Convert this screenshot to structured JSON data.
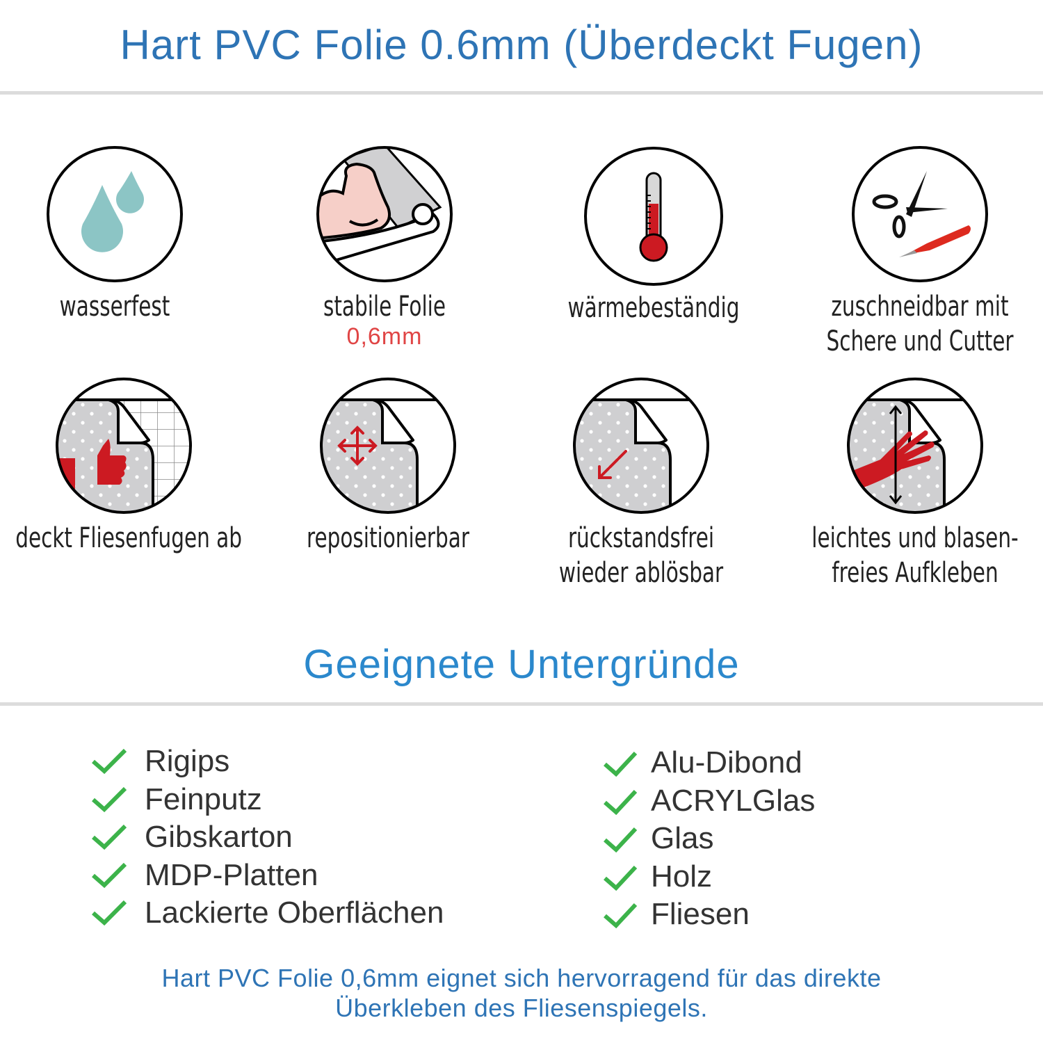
{
  "header": {
    "title": "Hart PVC Folie 0.6mm (Überdeckt Fugen)"
  },
  "features": [
    {
      "icon": "water-drops-icon",
      "lines": [
        "wasserfest"
      ]
    },
    {
      "icon": "strong-arm-roll-icon",
      "lines": [
        "stabile Folie"
      ],
      "highlight": "0,6mm"
    },
    {
      "icon": "thermometer-icon",
      "lines": [
        "wärmebeständig"
      ]
    },
    {
      "icon": "scissors-cutter-icon",
      "lines": [
        "zuschneidbar mit",
        "Schere und Cutter"
      ]
    },
    {
      "icon": "thumbs-up-tiles-icon",
      "lines": [
        "deckt Fliesenfugen ab"
      ]
    },
    {
      "icon": "move-arrows-icon",
      "lines": [
        "repositionierbar"
      ]
    },
    {
      "icon": "peel-arrow-icon",
      "lines": [
        "rückstandsfrei",
        "wieder ablösbar"
      ]
    },
    {
      "icon": "hand-smooth-icon",
      "lines": [
        "leichtes und blasen-",
        "freies Aufkleben"
      ]
    }
  ],
  "surfaces": {
    "title": "Geeignete Untergründe",
    "left": [
      "Rigips",
      "Feinputz",
      "Gibskarton",
      "MDP-Platten",
      "Lackierte Oberflächen"
    ],
    "right": [
      "Alu-Dibond",
      "ACRYLGlas",
      "Glas",
      "Holz",
      "Fliesen"
    ]
  },
  "footer": {
    "lines": [
      "Hart PVC Folie 0,6mm eignet sich hervorragend für das direkte",
      "Überkleben des Fliesenspiegels."
    ]
  },
  "colors": {
    "title": "#2e74b5",
    "check": "#3cb34a",
    "accent_red": "#cc1a22",
    "drop": "#8cc5c5"
  }
}
